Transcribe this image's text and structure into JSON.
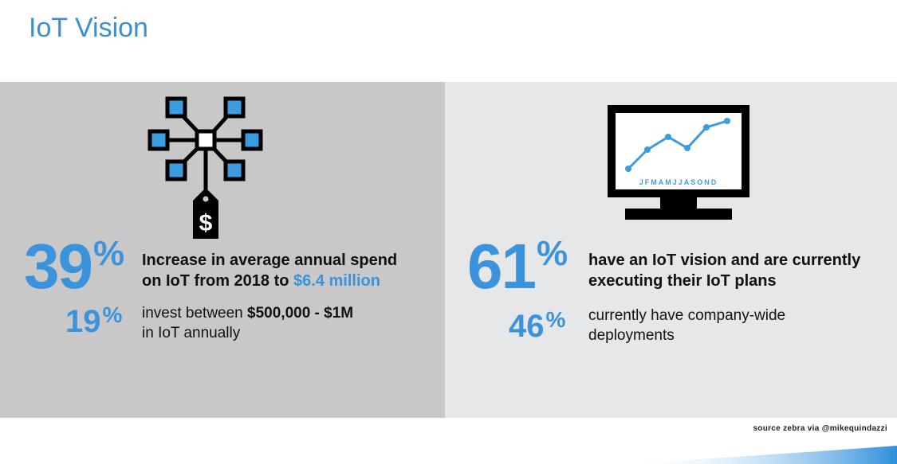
{
  "title": "IoT Vision",
  "left": {
    "icon": "network-price-tag-icon",
    "tag_symbol": "$",
    "main_value": "39",
    "main_pct": "%",
    "main_line1": "Increase in average annual spend",
    "main_line2_prefix": "on IoT from 2018 to ",
    "main_line2_highlight": "$6.4 million",
    "sub_value": "19",
    "sub_pct": "%",
    "sub_line1_prefix": "invest between ",
    "sub_line1_bold": "$500,000 - $1M",
    "sub_line2": "in IoT annually"
  },
  "right": {
    "icon": "monitor-line-chart-icon",
    "months": "JFMAMJJASOND",
    "main_value": "61",
    "main_pct": "%",
    "main_line1": "have an IoT vision and are currently",
    "main_line2": "executing their IoT plans",
    "sub_value": "46",
    "sub_pct": "%",
    "sub_line1": "currently have company-wide",
    "sub_line2": "deployments"
  },
  "source": "source zebra via @mikequindazzi",
  "colors": {
    "accent": "#3a93db",
    "left_panel": "#c8c8c8",
    "right_panel": "#e6e7e8",
    "icon_blue": "#3b9ce0"
  }
}
